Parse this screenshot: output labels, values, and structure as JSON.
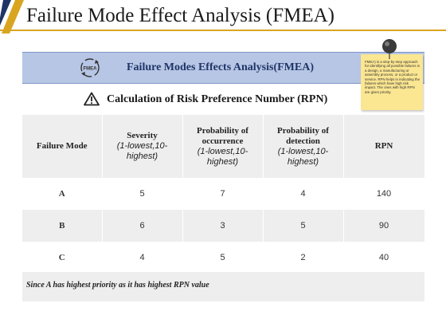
{
  "slide": {
    "title": "Failure Mode Effect Analysis (FMEA)",
    "colors": {
      "accent_gold": "#d9a520",
      "accent_navy": "#1f3566",
      "banner": "#b7c6e5",
      "note": "#fbe692"
    }
  },
  "banner": {
    "title": "Failure Modes Effects Analysis(FMEA)",
    "icon": "fmea-cycle-icon",
    "icon_label": "FMEA"
  },
  "subheader": {
    "title": "Calculation of Risk Preference Number (RPN)",
    "icon": "warning-icon"
  },
  "table": {
    "headers": [
      {
        "main": "Failure Mode",
        "detail": ""
      },
      {
        "main": "Severity",
        "detail": "(1-lowest,10-highest)"
      },
      {
        "main": "Probability of occurrence",
        "detail": "(1-lowest,10-highest)"
      },
      {
        "main": "Probability of detection",
        "detail": "(1-lowest,10-highest)"
      },
      {
        "main": "RPN",
        "detail": ""
      }
    ],
    "rows": [
      [
        "A",
        "5",
        "7",
        "4",
        "140"
      ],
      [
        "B",
        "6",
        "3",
        "5",
        "90"
      ],
      [
        "C",
        "4",
        "5",
        "2",
        "40"
      ]
    ]
  },
  "footer": {
    "text": "Since A has highest priority as it has highest RPN value"
  },
  "note": {
    "text": "FMEA) is a step-by-step approach for identifying all possible failures in a design, a manufacturing or assembly process, or a product or service. RPN helps in indicating the failures which have high risk impact. The ones with high RPN are given priority."
  }
}
